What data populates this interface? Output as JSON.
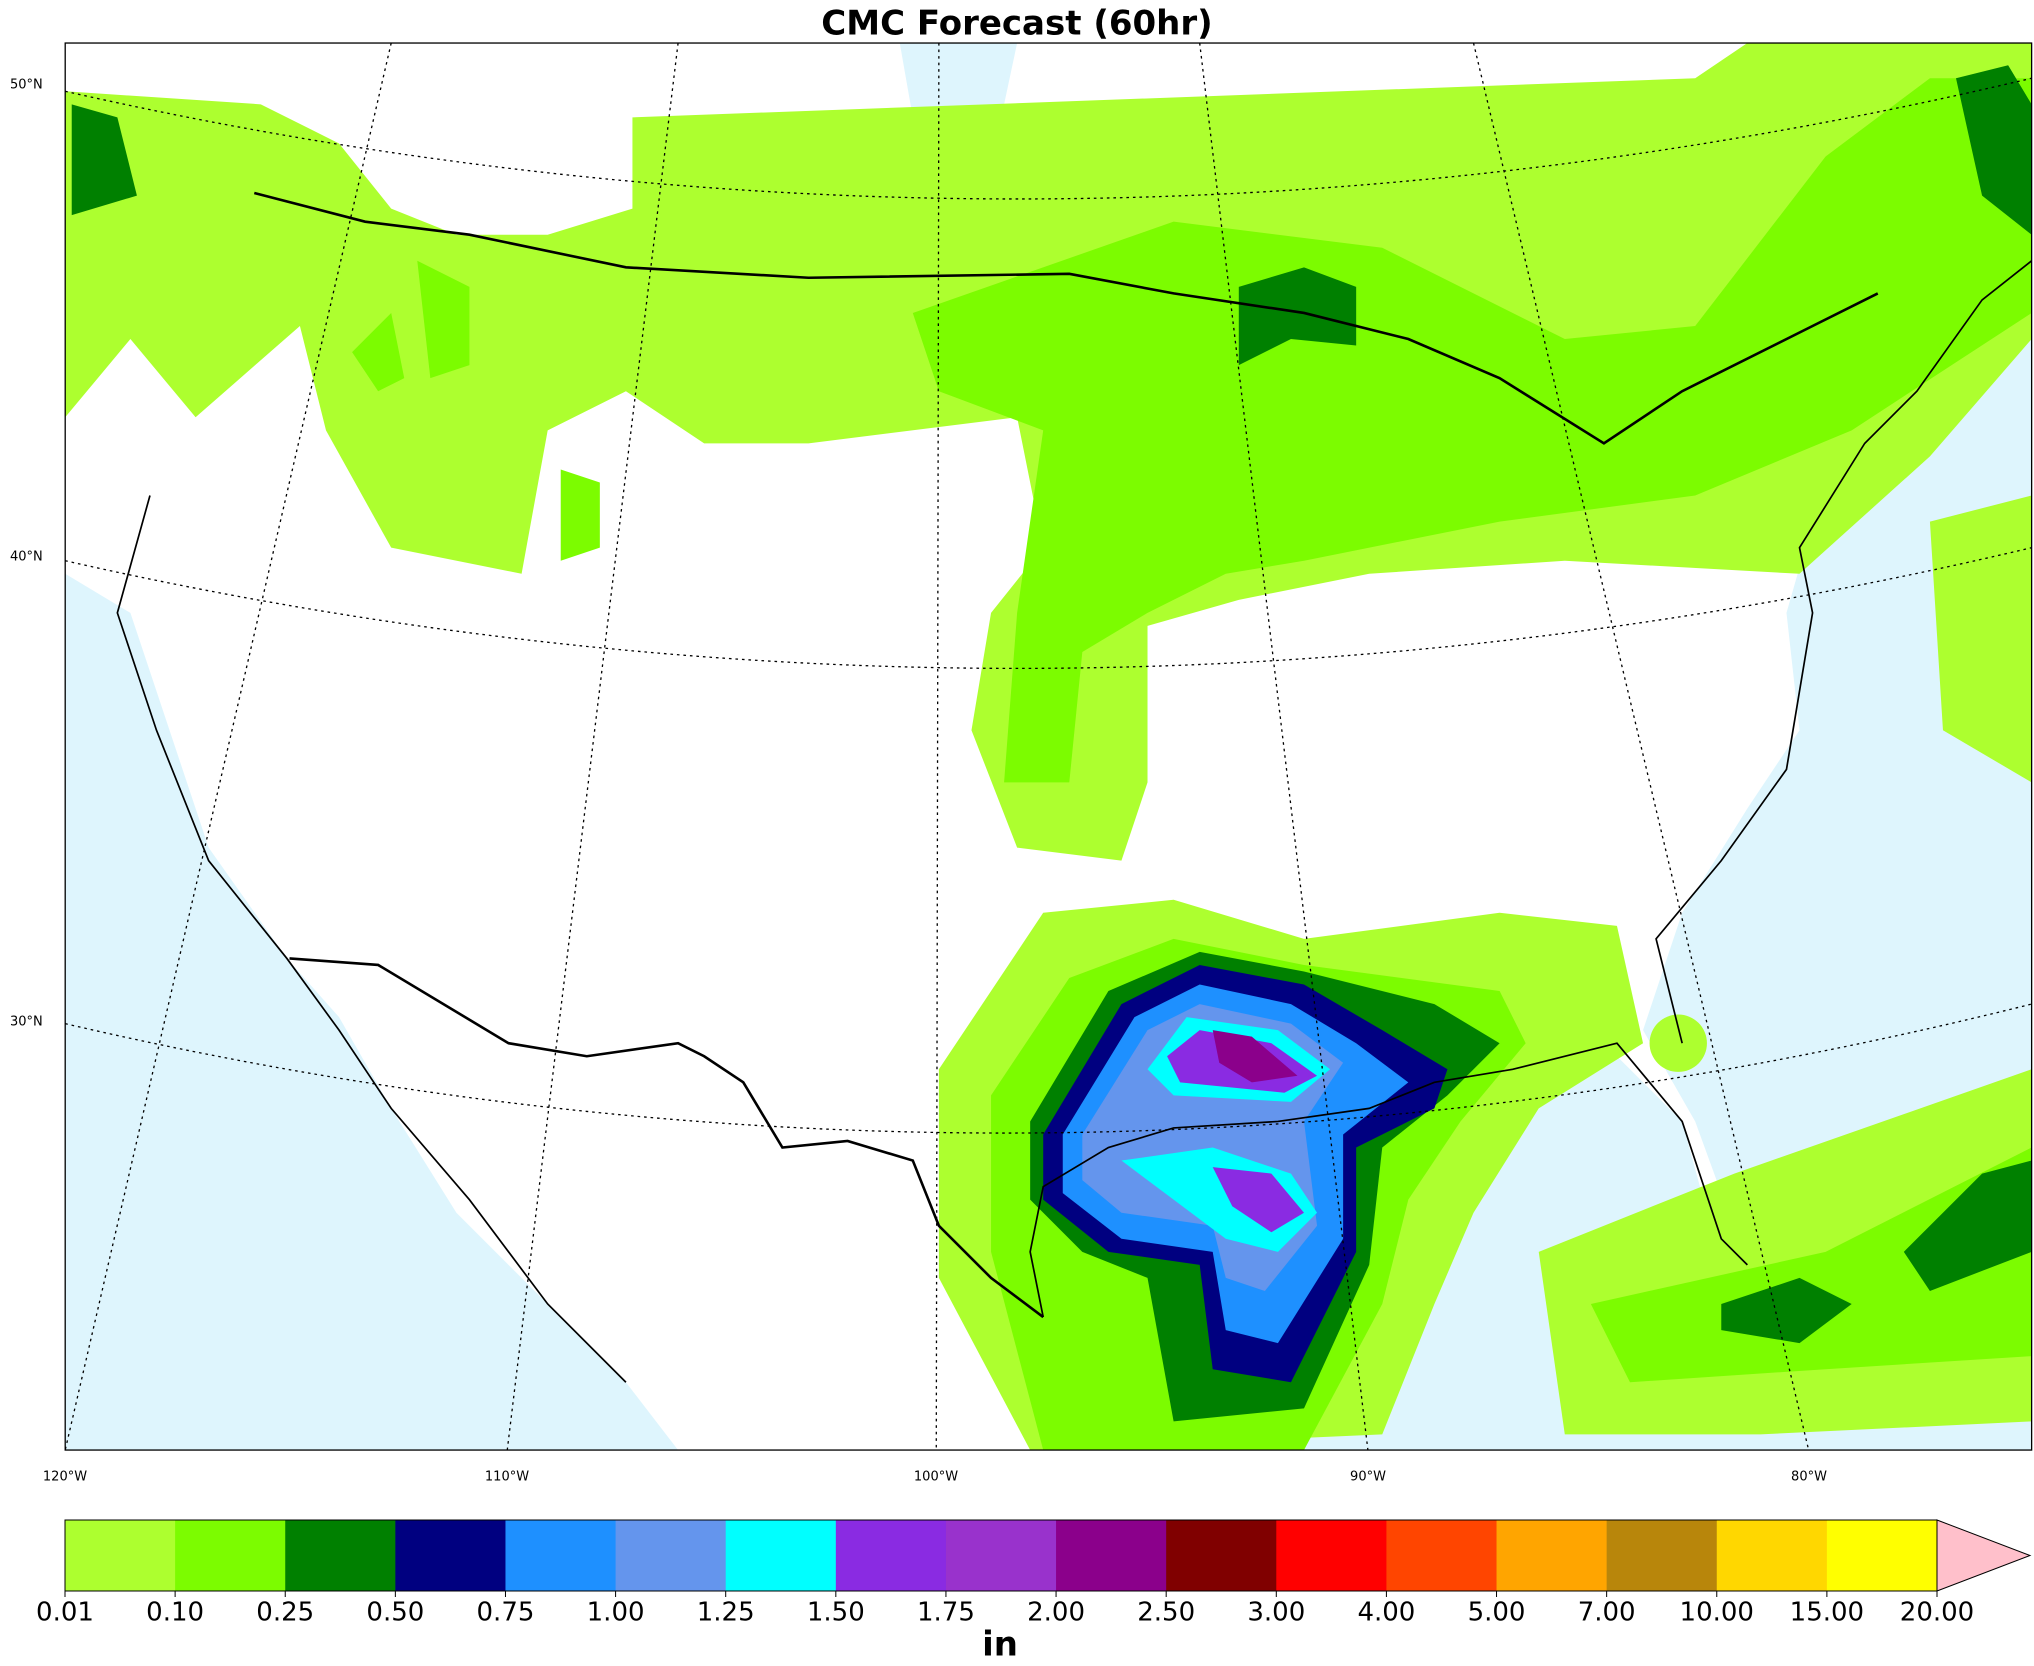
{
  "title": "CMC Forecast (60hr)",
  "map": {
    "lat_labels": [
      "50°N",
      "40°N",
      "30°N"
    ],
    "lon_labels": [
      "120°W",
      "110°W",
      "100°W",
      "90°W",
      "80°W"
    ]
  },
  "colorbar": {
    "ticks": [
      0.01,
      {
        "value": 0.1,
        "label": "0.10"
      },
      0.25,
      {
        "value": 0.5,
        "label": "0.50"
      },
      0.75,
      {
        "value": 1,
        "label": "1.00"
      },
      1.25,
      {
        "value": 1.5,
        "label": "1.50"
      },
      1.75,
      {
        "value": 2,
        "label": "2.00"
      },
      {
        "value": 2.5,
        "label": "2.50"
      },
      {
        "value": 3,
        "label": "3.00"
      },
      {
        "value": 4,
        "label": "4.00"
      },
      {
        "value": 5,
        "label": "5.00"
      },
      {
        "value": 7,
        "label": "7.00"
      },
      {
        "value": 10,
        "label": "10.00"
      },
      {
        "value": 15,
        "label": "15.00"
      },
      {
        "value": 20,
        "label": "20.00"
      }
    ],
    "colors": [
      "#adff2f",
      "#7cfc00",
      "#008000",
      "#000080",
      "#1e90ff",
      "#6495ed",
      "#00ffff",
      "#8a2be2",
      "#9932cc",
      "#8b008b",
      "#800000",
      "#ff0000",
      "#ff4500",
      "#ffa500",
      "#b8860b",
      "#ffd700",
      "#ffff00"
    ],
    "extend_color": "#ffc0cb",
    "label": "in"
  }
}
